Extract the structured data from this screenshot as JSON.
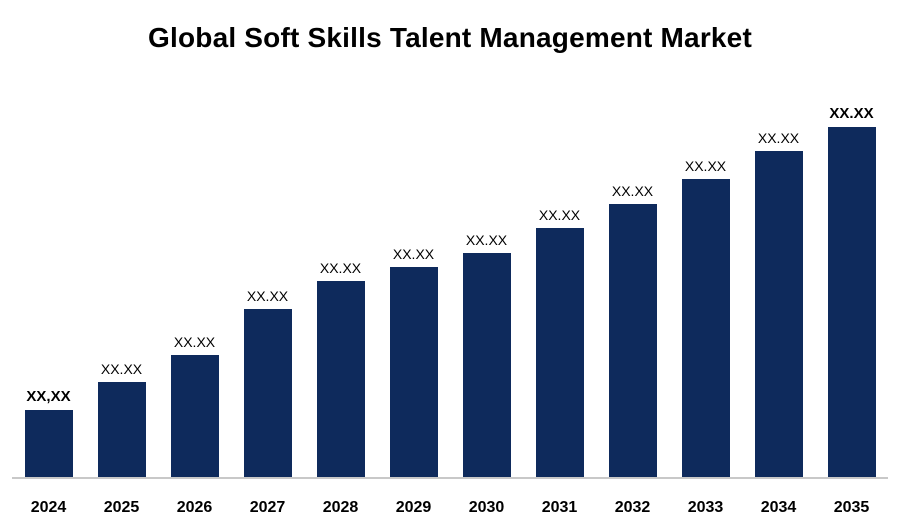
{
  "title": "Global Soft Skills Talent Management Market",
  "colors": {
    "bar": "#0E2A5C",
    "axis_line": "#c8c8c8",
    "text": "#000000",
    "background": "#ffffff"
  },
  "chart_data": {
    "type": "bar",
    "title": "Global Soft Skills Talent Management Market",
    "xlabel": "",
    "ylabel": "",
    "categories": [
      "2024",
      "2025",
      "2026",
      "2027",
      "2028",
      "2029",
      "2030",
      "2031",
      "2032",
      "2033",
      "2034",
      "2035"
    ],
    "values": [
      19,
      27,
      35,
      48,
      56,
      60,
      64,
      71,
      78,
      85,
      93,
      100
    ],
    "bar_labels": [
      "XX,XX",
      "XX.XX",
      "XX.XX",
      "XX.XX",
      "XX.XX",
      "XX.XX",
      "XX.XX",
      "XX.XX",
      "XX.XX",
      "XX.XX",
      "XX.XX",
      "XX.XX"
    ],
    "bar_label_bold": [
      true,
      false,
      false,
      false,
      false,
      false,
      false,
      false,
      false,
      false,
      false,
      true
    ],
    "ylim": [
      0,
      105
    ],
    "grid": false,
    "legend": "none",
    "bar_color": "#0E2A5C",
    "note": "Values shown as placeholder XX.XX labels; relative bar heights estimated 0-100 scale"
  }
}
